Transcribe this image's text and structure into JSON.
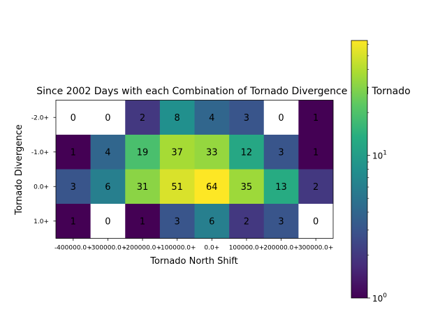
{
  "chart_data": {
    "type": "heatmap",
    "title": "Since 2002 Days with each Combination of Tornado Divergence and Tornado",
    "xlabel": "Tornado North Shift",
    "ylabel": "Tornado Divergence",
    "x_categories": [
      "-400000.0+",
      "-300000.0+",
      "-200000.0+",
      "-100000.0+",
      "0.0+",
      "100000.0+",
      "200000.0+",
      "300000.0+"
    ],
    "y_categories": [
      "-2.0+",
      "-1.0+",
      "0.0+",
      "1.0+"
    ],
    "values": [
      [
        0,
        0,
        2,
        8,
        4,
        3,
        0,
        1
      ],
      [
        1,
        4,
        19,
        37,
        33,
        12,
        3,
        1
      ],
      [
        3,
        6,
        31,
        51,
        64,
        35,
        13,
        2
      ],
      [
        1,
        0,
        1,
        3,
        6,
        2,
        3,
        0
      ]
    ],
    "color_scale": "log",
    "colormap": "viridis",
    "zero_color": "#ffffff",
    "colorbar": {
      "range": [
        1,
        64
      ],
      "ticks": [
        {
          "value": 1,
          "base": "10",
          "exp": "0"
        },
        {
          "value": 10,
          "base": "10",
          "exp": "1"
        }
      ]
    }
  }
}
